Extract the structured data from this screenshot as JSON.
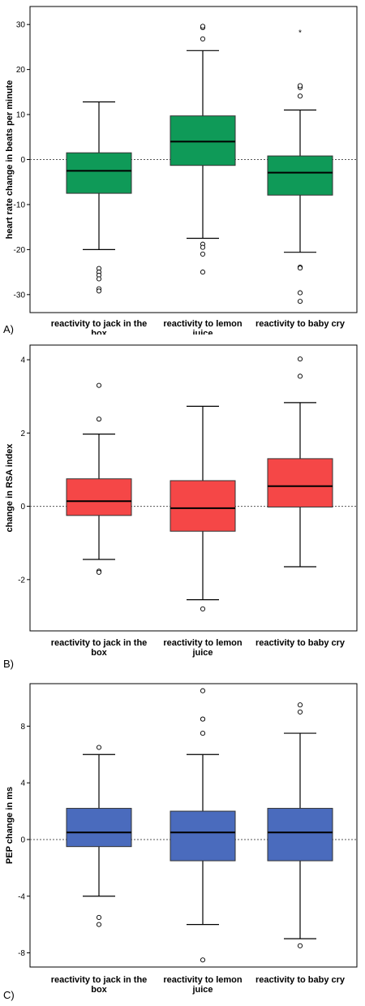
{
  "chart_data": [
    {
      "type": "box",
      "panel_label": "A)",
      "ylabel": "heart rate change in beats per minute",
      "categories": [
        "reactivity to jack in the box",
        "reactivity to lemon juice",
        "reactivity to baby cry"
      ],
      "category_lines": [
        [
          "reactivity to jack in the",
          "box"
        ],
        [
          "reactivity to lemon",
          "juice"
        ],
        [
          "reactivity to baby cry"
        ]
      ],
      "ylim": [
        -34,
        34
      ],
      "yticks": [
        -30,
        -20,
        -10,
        0,
        10,
        20,
        30
      ],
      "fill_color": "#0f9a58",
      "reference_line": 0,
      "boxes": [
        {
          "whisker_low": -20,
          "q1": -7.5,
          "median": -2.5,
          "q3": 1.5,
          "whisker_high": 12.8,
          "outliers": [
            -24.2,
            -25,
            -25.7,
            -26.5,
            -28.7,
            -29.2
          ],
          "extremes": []
        },
        {
          "whisker_low": -17.5,
          "q1": -1.3,
          "median": 4,
          "q3": 9.7,
          "whisker_high": 24.2,
          "outliers": [
            26.8,
            29.3,
            29.6,
            -18.8,
            -19.5,
            -21,
            -25
          ],
          "extremes": []
        },
        {
          "whisker_low": -20.6,
          "q1": -7.9,
          "median": -2.9,
          "q3": 0.8,
          "whisker_high": 11,
          "outliers": [
            14.1,
            16,
            16.4,
            -23.9,
            -24.1,
            -29.6,
            -31.5
          ],
          "extremes": [
            28.5
          ]
        }
      ]
    },
    {
      "type": "box",
      "panel_label": "B)",
      "ylabel": "change in RSA index",
      "categories": [
        "reactivity to jack in the box",
        "reactivity to lemon juice",
        "reactivity to baby cry"
      ],
      "category_lines": [
        [
          "reactivity to jack in the",
          "box"
        ],
        [
          "reactivity to lemon",
          "juice"
        ],
        [
          "reactivity to baby cry"
        ]
      ],
      "ylim": [
        -3.4,
        4.4
      ],
      "yticks": [
        -2,
        0,
        2,
        4
      ],
      "fill_color": "#f54747",
      "reference_line": 0,
      "boxes": [
        {
          "whisker_low": -1.45,
          "q1": -0.25,
          "median": 0.14,
          "q3": 0.75,
          "whisker_high": 1.97,
          "outliers": [
            2.38,
            3.3,
            -1.77,
            -1.8
          ],
          "extremes": []
        },
        {
          "whisker_low": -2.55,
          "q1": -0.68,
          "median": -0.05,
          "q3": 0.7,
          "whisker_high": 2.73,
          "outliers": [
            -2.8
          ],
          "extremes": []
        },
        {
          "whisker_low": -1.65,
          "q1": -0.02,
          "median": 0.55,
          "q3": 1.3,
          "whisker_high": 2.83,
          "outliers": [
            3.55,
            4.02
          ],
          "extremes": []
        }
      ]
    },
    {
      "type": "box",
      "panel_label": "C)",
      "ylabel": "PEP change in ms",
      "categories": [
        "reactivity to jack in the box",
        "reactivity to lemon juice",
        "reactivity to baby cry"
      ],
      "category_lines": [
        [
          "reactivity to jack in the",
          "box"
        ],
        [
          "reactivity to lemon",
          "juice"
        ],
        [
          "reactivity to baby cry"
        ]
      ],
      "ylim": [
        -9,
        11
      ],
      "yticks": [
        -8,
        -4,
        0,
        4,
        8
      ],
      "fill_color": "#4a6bbd",
      "reference_line": 0,
      "boxes": [
        {
          "whisker_low": -4,
          "q1": -0.5,
          "median": 0.5,
          "q3": 2.2,
          "whisker_high": 6,
          "outliers": [
            6.5,
            -5.5,
            -6
          ],
          "extremes": []
        },
        {
          "whisker_low": -6,
          "q1": -1.5,
          "median": 0.5,
          "q3": 2,
          "whisker_high": 6,
          "outliers": [
            7.5,
            8.5,
            8.5,
            10.5,
            -8.5
          ],
          "extremes": []
        },
        {
          "whisker_low": -7,
          "q1": -1.5,
          "median": 0.5,
          "q3": 2.2,
          "whisker_high": 7.5,
          "outliers": [
            9,
            9.5,
            -7.5
          ],
          "extremes": []
        }
      ]
    }
  ]
}
